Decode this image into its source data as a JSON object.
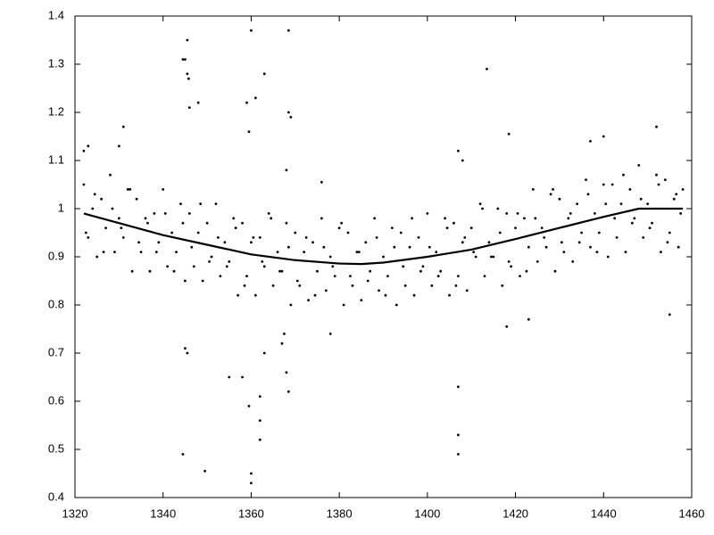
{
  "chart_data": {
    "type": "scatter",
    "xlim": [
      1320,
      1460
    ],
    "ylim": [
      0.4,
      1.4
    ],
    "xticks": [
      1320,
      1340,
      1360,
      1380,
      1400,
      1420,
      1440,
      1460
    ],
    "yticks": [
      0.4,
      0.5,
      0.6,
      0.7,
      0.8,
      0.9,
      1,
      1.1,
      1.2,
      1.3,
      1.4
    ],
    "series": [
      {
        "type": "scatter",
        "color": "#000000",
        "x": [
          1322,
          1323,
          1324,
          1325,
          1326,
          1327,
          1328,
          1329,
          1330,
          1331,
          1332,
          1333,
          1334,
          1335,
          1336,
          1337,
          1338,
          1339,
          1340,
          1341,
          1342,
          1343,
          1344,
          1345,
          1346,
          1347,
          1348,
          1349,
          1350,
          1351,
          1352,
          1353,
          1354,
          1355,
          1356,
          1357,
          1358,
          1359,
          1360,
          1361,
          1362,
          1363,
          1364,
          1365,
          1366,
          1367,
          1368,
          1369,
          1370,
          1371,
          1372,
          1373,
          1374,
          1375,
          1376,
          1377,
          1378,
          1379,
          1380,
          1381,
          1382,
          1383,
          1384,
          1385,
          1386,
          1387,
          1388,
          1389,
          1390,
          1391,
          1392,
          1393,
          1394,
          1395,
          1396,
          1397,
          1398,
          1399,
          1400,
          1401,
          1402,
          1403,
          1404,
          1405,
          1406,
          1407,
          1408,
          1409,
          1410,
          1411,
          1412,
          1413,
          1414,
          1415,
          1416,
          1417,
          1418,
          1419,
          1420,
          1421,
          1422,
          1423,
          1424,
          1425,
          1426,
          1427,
          1428,
          1429,
          1430,
          1431,
          1432,
          1433,
          1434,
          1435,
          1436,
          1437,
          1438,
          1439,
          1440,
          1441,
          1442,
          1443,
          1444,
          1445,
          1446,
          1447,
          1448,
          1449,
          1450,
          1451,
          1452,
          1453,
          1454,
          1455,
          1456,
          1457,
          1458,
          1322.5,
          1324.5,
          1326.5,
          1328.5,
          1330.5,
          1332.5,
          1334.5,
          1336.5,
          1338.5,
          1340.5,
          1342.5,
          1344.5,
          1346.5,
          1348.5,
          1350.5,
          1352.5,
          1354.5,
          1356.5,
          1358.5,
          1360.5,
          1362.5,
          1364.5,
          1366.5,
          1368.5,
          1370.5,
          1372.5,
          1374.5,
          1376.5,
          1378.5,
          1380.5,
          1382.5,
          1384.5,
          1386.5,
          1388.5,
          1390.5,
          1392.5,
          1394.5,
          1396.5,
          1398.5,
          1400.5,
          1402.5,
          1404.5,
          1406.5,
          1408.5,
          1410.5,
          1412.5,
          1414.5,
          1416.5,
          1418.5,
          1420.5,
          1422.5,
          1424.5,
          1426.5,
          1428.5,
          1430.5,
          1432.5,
          1434.5,
          1436.5,
          1438.5,
          1440.5,
          1442.5,
          1444.5,
          1446.5,
          1448.5,
          1450.5,
          1452.5,
          1454.5,
          1456.5,
          1457.5,
          1344.5,
          1345,
          1345.5,
          1345.5,
          1345.8,
          1346,
          1348,
          1360,
          1361,
          1363,
          1368.5,
          1368.5,
          1369,
          1359,
          1359.5,
          1413.5,
          1344.5,
          1349.5,
          1360,
          1360,
          1359.5,
          1362,
          1362,
          1368.5,
          1368,
          1407,
          1407,
          1407,
          1345,
          1345.5,
          1355,
          1358,
          1367,
          1367.5,
          1362,
          1363,
          1378,
          1418,
          1423,
          1455,
          1452,
          1437,
          1440,
          1418.5,
          1407,
          1408,
          1376,
          1331,
          1322,
          1323,
          1330,
          1368
        ],
        "y": [
          1.05,
          0.94,
          1.0,
          0.9,
          1.02,
          0.96,
          1.07,
          0.91,
          0.98,
          0.94,
          1.04,
          0.87,
          1.02,
          0.91,
          0.98,
          0.87,
          0.99,
          0.93,
          1.04,
          0.88,
          0.95,
          0.91,
          1.01,
          0.85,
          0.99,
          0.88,
          0.95,
          0.85,
          0.97,
          0.9,
          1.01,
          0.86,
          0.93,
          0.89,
          0.98,
          0.82,
          0.97,
          0.86,
          0.93,
          0.82,
          0.94,
          0.88,
          0.99,
          0.84,
          0.91,
          0.87,
          0.97,
          0.8,
          0.95,
          0.84,
          0.91,
          0.81,
          0.93,
          0.87,
          0.98,
          0.83,
          0.9,
          0.86,
          0.96,
          0.8,
          0.95,
          0.84,
          0.91,
          0.81,
          0.93,
          0.87,
          0.98,
          0.83,
          0.9,
          0.86,
          0.96,
          0.8,
          0.95,
          0.84,
          0.92,
          0.82,
          0.94,
          0.88,
          0.99,
          0.84,
          0.91,
          0.87,
          0.98,
          0.82,
          0.97,
          0.86,
          0.93,
          0.83,
          0.96,
          0.9,
          1.01,
          0.86,
          0.93,
          0.9,
          1.0,
          0.84,
          0.99,
          0.88,
          0.96,
          0.86,
          0.98,
          0.92,
          1.04,
          0.89,
          0.96,
          0.92,
          1.03,
          0.87,
          1.02,
          0.91,
          0.98,
          0.89,
          1.01,
          0.95,
          1.06,
          0.92,
          0.99,
          0.95,
          1.05,
          0.9,
          1.05,
          0.94,
          1.01,
          0.91,
          1.04,
          0.98,
          1.09,
          0.94,
          1.01,
          0.97,
          1.07,
          0.91,
          1.06,
          0.95,
          1.02,
          0.92,
          1.04,
          0.95,
          1.03,
          0.91,
          1.0,
          0.96,
          1.04,
          0.93,
          0.97,
          0.91,
          0.99,
          0.87,
          0.97,
          0.92,
          1.01,
          0.89,
          0.94,
          0.88,
          0.96,
          0.84,
          0.94,
          0.89,
          0.98,
          0.87,
          0.92,
          0.85,
          0.94,
          0.82,
          0.92,
          0.88,
          0.97,
          0.86,
          0.91,
          0.85,
          0.94,
          0.82,
          0.92,
          0.88,
          0.98,
          0.87,
          0.92,
          0.86,
          0.96,
          0.84,
          0.94,
          0.91,
          1.0,
          0.9,
          0.95,
          0.89,
          0.99,
          0.87,
          0.98,
          0.94,
          1.04,
          0.93,
          0.99,
          0.93,
          1.03,
          0.91,
          1.01,
          0.98,
          1.07,
          0.97,
          1.02,
          0.96,
          1.05,
          0.93,
          1.03,
          0.99,
          1.31,
          1.31,
          1.35,
          1.28,
          1.27,
          1.21,
          1.22,
          1.37,
          1.23,
          1.28,
          1.37,
          1.2,
          1.19,
          1.22,
          1.16,
          1.29,
          0.49,
          0.455,
          0.45,
          0.43,
          0.59,
          0.52,
          0.56,
          0.62,
          0.66,
          0.53,
          0.49,
          0.63,
          0.71,
          0.7,
          0.65,
          0.65,
          0.72,
          0.74,
          0.61,
          0.7,
          0.74,
          0.755,
          0.77,
          0.78,
          1.17,
          1.14,
          1.15,
          1.155,
          1.12,
          1.1,
          1.055,
          1.17,
          1.12,
          1.13,
          1.13,
          1.08
        ]
      },
      {
        "type": "line",
        "color": "#000000",
        "x": [
          1322,
          1330,
          1340,
          1350,
          1360,
          1370,
          1380,
          1385,
          1390,
          1400,
          1410,
          1420,
          1430,
          1440,
          1448,
          1458
        ],
        "y": [
          0.99,
          0.97,
          0.945,
          0.925,
          0.905,
          0.893,
          0.886,
          0.885,
          0.888,
          0.9,
          0.915,
          0.937,
          0.96,
          0.983,
          1.0,
          1.0
        ]
      }
    ]
  }
}
